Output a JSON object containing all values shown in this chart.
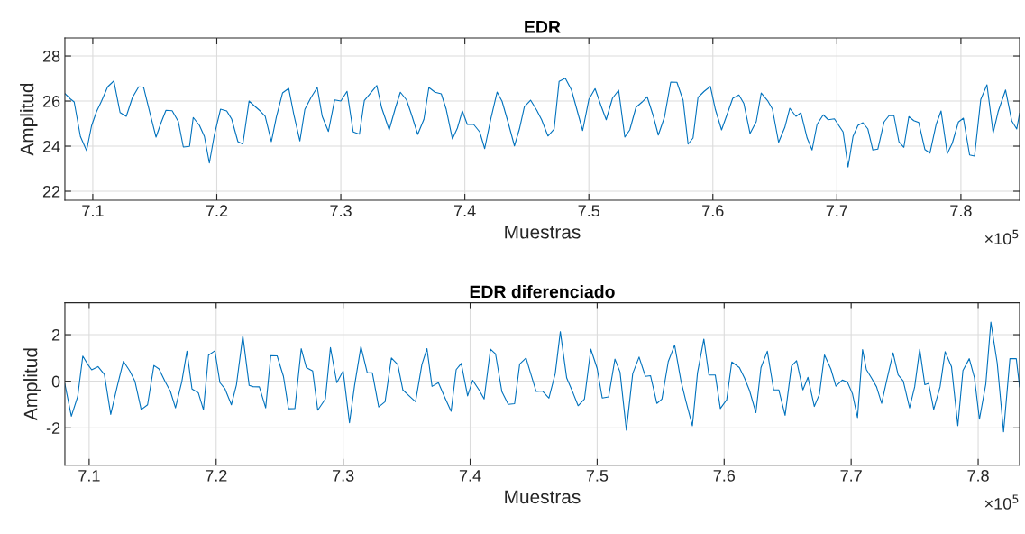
{
  "chart_data": [
    {
      "type": "line",
      "title": "EDR",
      "xlabel": "Muestras",
      "ylabel": "Amplitud",
      "grid": true,
      "marker": "none",
      "line_style": "solid",
      "xlim": [
        7.0775,
        7.8473
      ],
      "ylim": [
        21.6,
        28.8
      ],
      "xticks": [
        7.1,
        7.2,
        7.3,
        7.4,
        7.5,
        7.6,
        7.7,
        7.8
      ],
      "yticks": [
        22,
        24,
        26,
        28
      ],
      "annotations": [
        "×10$^{5}$"
      ],
      "series": [
        {
          "color": "#0072bd",
          "x": [
            7.0775,
            7.082,
            7.085,
            7.09,
            7.095,
            7.099,
            7.103,
            7.107,
            7.112,
            7.117,
            7.122,
            7.127,
            7.132,
            7.137,
            7.141,
            7.146,
            7.151,
            7.155,
            7.159,
            7.164,
            7.169,
            7.173,
            7.178,
            7.181,
            7.186,
            7.19,
            7.194,
            7.198,
            7.203,
            7.208,
            7.212,
            7.217,
            7.221,
            7.226,
            7.23,
            7.235,
            7.239,
            7.244,
            7.248,
            7.253,
            7.258,
            7.262,
            7.267,
            7.271,
            7.276,
            7.281,
            7.285,
            7.29,
            7.295,
            7.3,
            7.305,
            7.31,
            7.315,
            7.319,
            7.324,
            7.329,
            7.333,
            7.339,
            7.344,
            7.348,
            7.353,
            7.357,
            7.362,
            7.367,
            7.371,
            7.376,
            7.381,
            7.385,
            7.39,
            7.394,
            7.398,
            7.402,
            7.407,
            7.412,
            7.416,
            7.421,
            7.426,
            7.43,
            7.435,
            7.44,
            7.444,
            7.448,
            7.453,
            7.458,
            7.462,
            7.467,
            7.472,
            7.476,
            7.481,
            7.486,
            7.491,
            7.495,
            7.5,
            7.505,
            7.51,
            7.514,
            7.519,
            7.524,
            7.529,
            7.533,
            7.538,
            7.543,
            7.547,
            7.552,
            7.556,
            7.561,
            7.566,
            7.571,
            7.576,
            7.58,
            7.584,
            7.588,
            7.593,
            7.598,
            7.602,
            7.607,
            7.612,
            7.616,
            7.621,
            7.625,
            7.63,
            7.635,
            7.639,
            7.644,
            7.648,
            7.653,
            7.658,
            7.662,
            7.667,
            7.671,
            7.676,
            7.68,
            7.684,
            7.689,
            7.693,
            7.698,
            7.705,
            7.709,
            7.713,
            7.717,
            7.721,
            7.725,
            7.729,
            7.733,
            7.738,
            7.742,
            7.746,
            7.75,
            7.754,
            7.758,
            7.762,
            7.766,
            7.771,
            7.775,
            7.78,
            7.784,
            7.789,
            7.793,
            7.798,
            7.802,
            7.807,
            7.811,
            7.816,
            7.821,
            7.826,
            7.83,
            7.836,
            7.841,
            7.845,
            7.8473
          ],
          "values": [
            26.33,
            26.09,
            25.96,
            24.43,
            23.8,
            24.9,
            25.53,
            25.99,
            26.63,
            26.89,
            25.49,
            25.32,
            26.16,
            26.63,
            26.61,
            25.49,
            24.4,
            25.03,
            25.59,
            25.57,
            25.09,
            23.96,
            23.99,
            25.27,
            24.92,
            24.43,
            23.25,
            24.49,
            25.64,
            25.56,
            25.2,
            24.2,
            24.09,
            26.0,
            25.8,
            25.56,
            25.33,
            24.2,
            25.29,
            26.36,
            26.56,
            25.43,
            24.23,
            25.63,
            26.16,
            26.6,
            25.32,
            24.65,
            26.05,
            26.0,
            26.43,
            24.63,
            24.53,
            26.03,
            26.36,
            26.69,
            25.69,
            24.72,
            25.69,
            26.39,
            26.05,
            25.4,
            24.52,
            25.19,
            26.6,
            26.39,
            26.32,
            25.63,
            24.32,
            24.8,
            25.56,
            24.96,
            24.97,
            24.63,
            23.89,
            25.23,
            26.4,
            25.99,
            25.03,
            24.01,
            24.76,
            25.75,
            26.04,
            25.59,
            25.16,
            24.45,
            24.76,
            26.87,
            27.01,
            26.49,
            25.49,
            24.69,
            26.07,
            26.55,
            25.76,
            25.17,
            26.12,
            26.48,
            24.4,
            24.72,
            25.72,
            25.96,
            26.19,
            25.33,
            24.49,
            25.29,
            26.84,
            26.83,
            26.03,
            24.09,
            24.36,
            26.16,
            26.43,
            26.65,
            25.63,
            24.72,
            25.49,
            26.12,
            26.27,
            25.89,
            24.56,
            25.09,
            26.36,
            26.03,
            25.65,
            24.17,
            24.83,
            25.68,
            25.32,
            25.48,
            24.36,
            23.83,
            24.96,
            25.39,
            25.17,
            25.21,
            24.63,
            23.07,
            24.43,
            24.92,
            25.04,
            24.76,
            23.83,
            23.87,
            25.07,
            25.35,
            25.35,
            24.2,
            23.95,
            25.31,
            25.13,
            25.05,
            23.85,
            23.69,
            24.96,
            25.56,
            23.67,
            24.12,
            25.07,
            25.24,
            23.61,
            23.56,
            26.07,
            26.72,
            24.59,
            25.53,
            26.49,
            25.12,
            24.76,
            25.45
          ]
        }
      ]
    },
    {
      "type": "line",
      "title": "EDR diferenciado",
      "xlabel": "Muestras",
      "ylabel": "Amplitud",
      "grid": true,
      "marker": "none",
      "line_style": "solid",
      "xlim": [
        7.0809,
        7.8326
      ],
      "ylim": [
        -3.6,
        3.37
      ],
      "xticks": [
        7.1,
        7.2,
        7.3,
        7.4,
        7.5,
        7.6,
        7.7,
        7.8
      ],
      "yticks": [
        -2,
        0,
        2
      ],
      "annotations": [
        "×10$^{5}$"
      ],
      "series": [
        {
          "color": "#0072bd",
          "x": [
            7.0809,
            7.086,
            7.091,
            7.095,
            7.099,
            7.102,
            7.107,
            7.112,
            7.117,
            7.122,
            7.127,
            7.132,
            7.136,
            7.141,
            7.146,
            7.151,
            7.155,
            7.16,
            7.164,
            7.168,
            7.173,
            7.177,
            7.181,
            7.186,
            7.19,
            7.194,
            7.199,
            7.203,
            7.207,
            7.212,
            7.216,
            7.221,
            7.226,
            7.229,
            7.234,
            7.239,
            7.243,
            7.248,
            7.253,
            7.257,
            7.262,
            7.267,
            7.271,
            7.276,
            7.28,
            7.286,
            7.29,
            7.295,
            7.3,
            7.305,
            7.309,
            7.314,
            7.319,
            7.323,
            7.328,
            7.333,
            7.338,
            7.343,
            7.347,
            7.352,
            7.357,
            7.362,
            7.366,
            7.37,
            7.375,
            7.38,
            7.385,
            7.389,
            7.393,
            7.398,
            7.402,
            7.407,
            7.411,
            7.416,
            7.42,
            7.425,
            7.43,
            7.435,
            7.439,
            7.444,
            7.448,
            7.452,
            7.457,
            7.462,
            7.467,
            7.471,
            7.476,
            7.481,
            7.485,
            7.49,
            7.495,
            7.5,
            7.504,
            7.509,
            7.514,
            7.518,
            7.523,
            7.528,
            7.533,
            7.538,
            7.542,
            7.547,
            7.551,
            7.556,
            7.561,
            7.566,
            7.57,
            7.575,
            7.579,
            7.584,
            7.588,
            7.593,
            7.597,
            7.602,
            7.606,
            7.612,
            7.616,
            7.62,
            7.625,
            7.629,
            7.634,
            7.639,
            7.643,
            7.648,
            7.653,
            7.657,
            7.662,
            7.666,
            7.671,
            7.675,
            7.679,
            7.684,
            7.688,
            7.693,
            7.697,
            7.701,
            7.705,
            7.709,
            7.712,
            7.716,
            7.72,
            7.724,
            7.728,
            7.733,
            7.737,
            7.741,
            7.746,
            7.75,
            7.754,
            7.758,
            7.761,
            7.765,
            7.77,
            7.774,
            7.779,
            7.784,
            7.788,
            7.793,
            7.797,
            7.801,
            7.806,
            7.81,
            7.815,
            7.82,
            7.825,
            7.83,
            7.8326
          ],
          "values": [
            -0.12,
            -1.5,
            -0.65,
            1.08,
            0.72,
            0.49,
            0.63,
            0.29,
            -1.42,
            -0.24,
            0.86,
            0.44,
            0.01,
            -1.22,
            -1.01,
            0.68,
            0.53,
            -0.03,
            -0.44,
            -1.14,
            -0.01,
            1.29,
            -0.33,
            -0.5,
            -1.22,
            1.12,
            1.31,
            -0.06,
            -0.33,
            -1.01,
            -0.15,
            1.96,
            -0.18,
            -0.23,
            -0.24,
            -1.14,
            1.1,
            1.09,
            0.21,
            -1.18,
            -1.17,
            1.4,
            0.59,
            0.44,
            -1.24,
            -0.76,
            1.45,
            -0.06,
            0.44,
            -1.78,
            -0.18,
            1.49,
            0.36,
            0.36,
            -1.1,
            -0.88,
            1.0,
            0.72,
            -0.37,
            -0.63,
            -0.88,
            0.72,
            1.4,
            -0.22,
            -0.06,
            -0.69,
            -1.29,
            0.5,
            0.77,
            -0.63,
            0.04,
            -0.37,
            -0.76,
            1.38,
            1.17,
            -0.45,
            -0.99,
            -0.96,
            0.74,
            1.0,
            0.27,
            -0.44,
            -0.42,
            -0.72,
            0.33,
            2.13,
            0.14,
            -0.5,
            -1.05,
            -0.76,
            1.38,
            0.55,
            -0.72,
            -0.67,
            0.95,
            0.4,
            -2.1,
            0.33,
            1.04,
            0.21,
            0.24,
            -0.95,
            -0.76,
            0.85,
            1.55,
            0.01,
            -0.88,
            -1.91,
            0.36,
            1.81,
            0.27,
            0.27,
            -1.17,
            -0.79,
            0.83,
            0.59,
            0.14,
            -0.4,
            -1.35,
            0.59,
            1.29,
            -0.37,
            -0.37,
            -1.46,
            0.65,
            0.88,
            -0.37,
            0.17,
            -1.08,
            -0.56,
            1.13,
            0.53,
            -0.21,
            0.05,
            -0.03,
            -0.53,
            -1.56,
            1.36,
            0.5,
            0.14,
            -0.24,
            -0.95,
            0.04,
            1.22,
            0.27,
            0.01,
            -1.14,
            -0.24,
            1.38,
            -0.15,
            -0.09,
            -1.21,
            -0.24,
            1.27,
            0.63,
            -1.91,
            0.46,
            0.97,
            0.17,
            -1.63,
            -0.12,
            2.54,
            0.78,
            -2.17,
            0.97,
            0.97,
            -0.24
          ]
        }
      ]
    }
  ]
}
